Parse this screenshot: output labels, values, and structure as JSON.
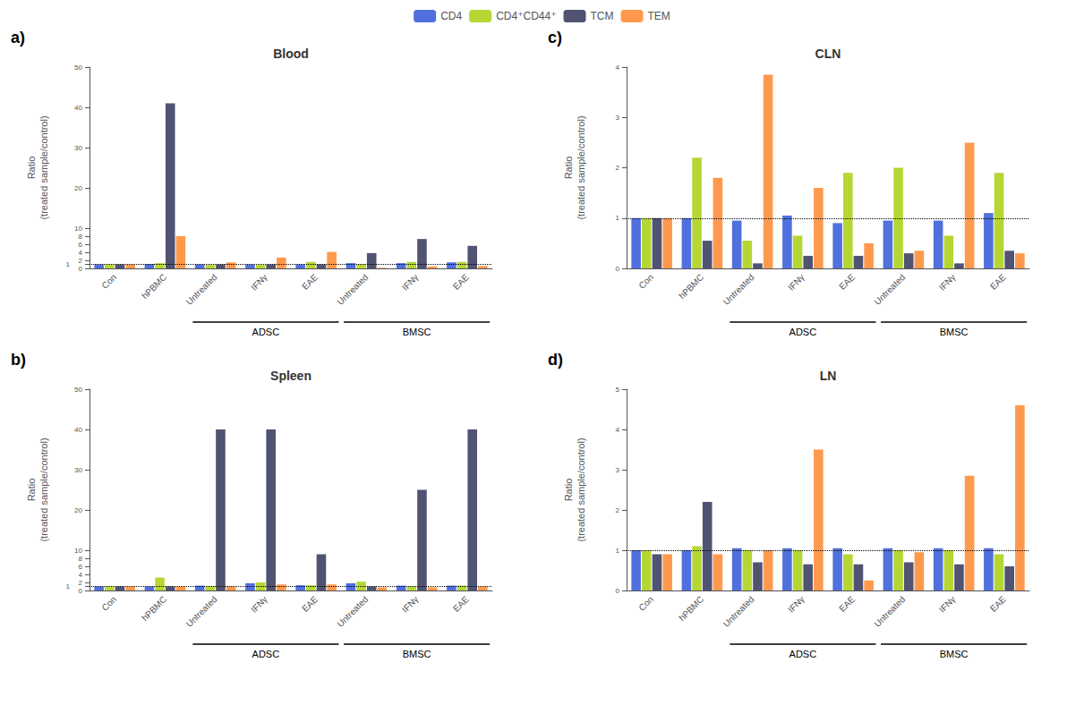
{
  "chart_data": [
    {
      "type": "bar",
      "panel_label": "a)",
      "title": "Blood",
      "ylabel": "Ratio\n(treated sample/control)",
      "categories": [
        "Con",
        "hPBMC",
        "Untreated",
        "IFNγ",
        "EAE",
        "Untreated",
        "IFNγ",
        "EAE"
      ],
      "series": [
        {
          "name": "CD4",
          "values": [
            1.0,
            1.1,
            1.0,
            1.0,
            1.0,
            1.3,
            1.3,
            1.5
          ]
        },
        {
          "name": "CD4⁺CD44⁺",
          "values": [
            1.0,
            1.3,
            0.9,
            0.9,
            1.6,
            1.1,
            1.6,
            1.6
          ]
        },
        {
          "name": "TCM",
          "values": [
            1.0,
            41.0,
            1.0,
            1.0,
            1.0,
            3.8,
            7.3,
            5.6
          ]
        },
        {
          "name": "TEM",
          "values": [
            1.0,
            8.0,
            1.5,
            2.7,
            4.1,
            0.15,
            0.5,
            0.6
          ]
        }
      ],
      "ylim": [
        0,
        50
      ],
      "yticks": [
        0,
        1,
        2,
        4,
        6,
        8,
        10,
        20,
        30,
        40,
        50
      ],
      "reference_line": 1.0,
      "brackets": [
        {
          "text": "ADSC",
          "first": 2,
          "last": 4
        },
        {
          "text": "BMSC",
          "first": 5,
          "last": 7
        }
      ],
      "grid": false,
      "legend": "top"
    },
    {
      "type": "bar",
      "panel_label": "b)",
      "title": "Spleen",
      "ylabel": "Ratio\n(treated sample/control)",
      "categories": [
        "Con",
        "hPBMC",
        "Untreated",
        "IFNγ",
        "EAE",
        "Untreated",
        "IFNγ",
        "EAE"
      ],
      "series": [
        {
          "name": "CD4",
          "values": [
            1.0,
            1.0,
            1.2,
            1.8,
            1.3,
            1.8,
            1.2,
            1.2
          ]
        },
        {
          "name": "CD4⁺CD44⁺",
          "values": [
            1.0,
            3.2,
            1.1,
            2.0,
            1.3,
            2.2,
            1.1,
            1.2
          ]
        },
        {
          "name": "TCM",
          "values": [
            1.0,
            1.0,
            40.0,
            40.0,
            9.0,
            1.0,
            25.0,
            40.0
          ]
        },
        {
          "name": "TEM",
          "values": [
            1.0,
            1.0,
            1.0,
            1.5,
            1.5,
            0.8,
            0.8,
            1.0
          ]
        }
      ],
      "ylim": [
        0,
        50
      ],
      "yticks": [
        0,
        1,
        2,
        4,
        6,
        8,
        10,
        20,
        30,
        40,
        50
      ],
      "reference_line": 1.0,
      "brackets": [
        {
          "text": "ADSC",
          "first": 2,
          "last": 4
        },
        {
          "text": "BMSC",
          "first": 5,
          "last": 7
        }
      ],
      "grid": false,
      "legend": "top"
    },
    {
      "type": "bar",
      "panel_label": "c)",
      "title": "CLN",
      "ylabel": "Ratio\n(treated sample/control)",
      "categories": [
        "Con",
        "hPBMC",
        "Untreated",
        "IFNγ",
        "EAE",
        "Untreated",
        "IFNγ",
        "EAE"
      ],
      "series": [
        {
          "name": "CD4",
          "values": [
            1.0,
            1.0,
            0.95,
            1.05,
            0.9,
            0.95,
            0.95,
            1.1
          ]
        },
        {
          "name": "CD4⁺CD44⁺",
          "values": [
            1.0,
            2.2,
            0.55,
            0.65,
            1.9,
            2.0,
            0.65,
            1.9
          ]
        },
        {
          "name": "TCM",
          "values": [
            1.0,
            0.55,
            0.1,
            0.25,
            0.25,
            0.3,
            0.1,
            0.35
          ]
        },
        {
          "name": "TEM",
          "values": [
            1.0,
            1.8,
            3.85,
            1.6,
            0.5,
            0.35,
            2.5,
            0.3
          ]
        }
      ],
      "ylim": [
        0,
        4
      ],
      "yticks": [
        0,
        1,
        2,
        3,
        4
      ],
      "reference_line": 1.0,
      "brackets": [
        {
          "text": "ADSC",
          "first": 2,
          "last": 4
        },
        {
          "text": "BMSC",
          "first": 5,
          "last": 7
        }
      ],
      "grid": false,
      "legend": "top"
    },
    {
      "type": "bar",
      "panel_label": "d)",
      "title": "LN",
      "ylabel": "Ratio\n(treated sample/control)",
      "categories": [
        "Con",
        "hPBMC",
        "Untreated",
        "IFNγ",
        "EAE",
        "Untreated",
        "IFNγ",
        "EAE"
      ],
      "series": [
        {
          "name": "CD4",
          "values": [
            1.0,
            1.0,
            1.05,
            1.05,
            1.05,
            1.05,
            1.05,
            1.05
          ]
        },
        {
          "name": "CD4⁺CD44⁺",
          "values": [
            1.0,
            1.1,
            1.0,
            1.0,
            0.9,
            1.0,
            1.0,
            0.9
          ]
        },
        {
          "name": "TCM",
          "values": [
            0.9,
            2.2,
            0.7,
            0.65,
            0.65,
            0.7,
            0.65,
            0.6
          ]
        },
        {
          "name": "TEM",
          "values": [
            0.9,
            0.9,
            1.0,
            3.5,
            0.25,
            0.95,
            2.85,
            4.6
          ]
        }
      ],
      "ylim": [
        0,
        5
      ],
      "yticks": [
        0,
        1,
        2,
        3,
        4,
        5
      ],
      "reference_line": 1.0,
      "brackets": [
        {
          "text": "ADSC",
          "first": 2,
          "last": 4
        },
        {
          "text": "BMSC",
          "first": 5,
          "last": 7
        }
      ],
      "grid": false,
      "legend": "top"
    }
  ]
}
